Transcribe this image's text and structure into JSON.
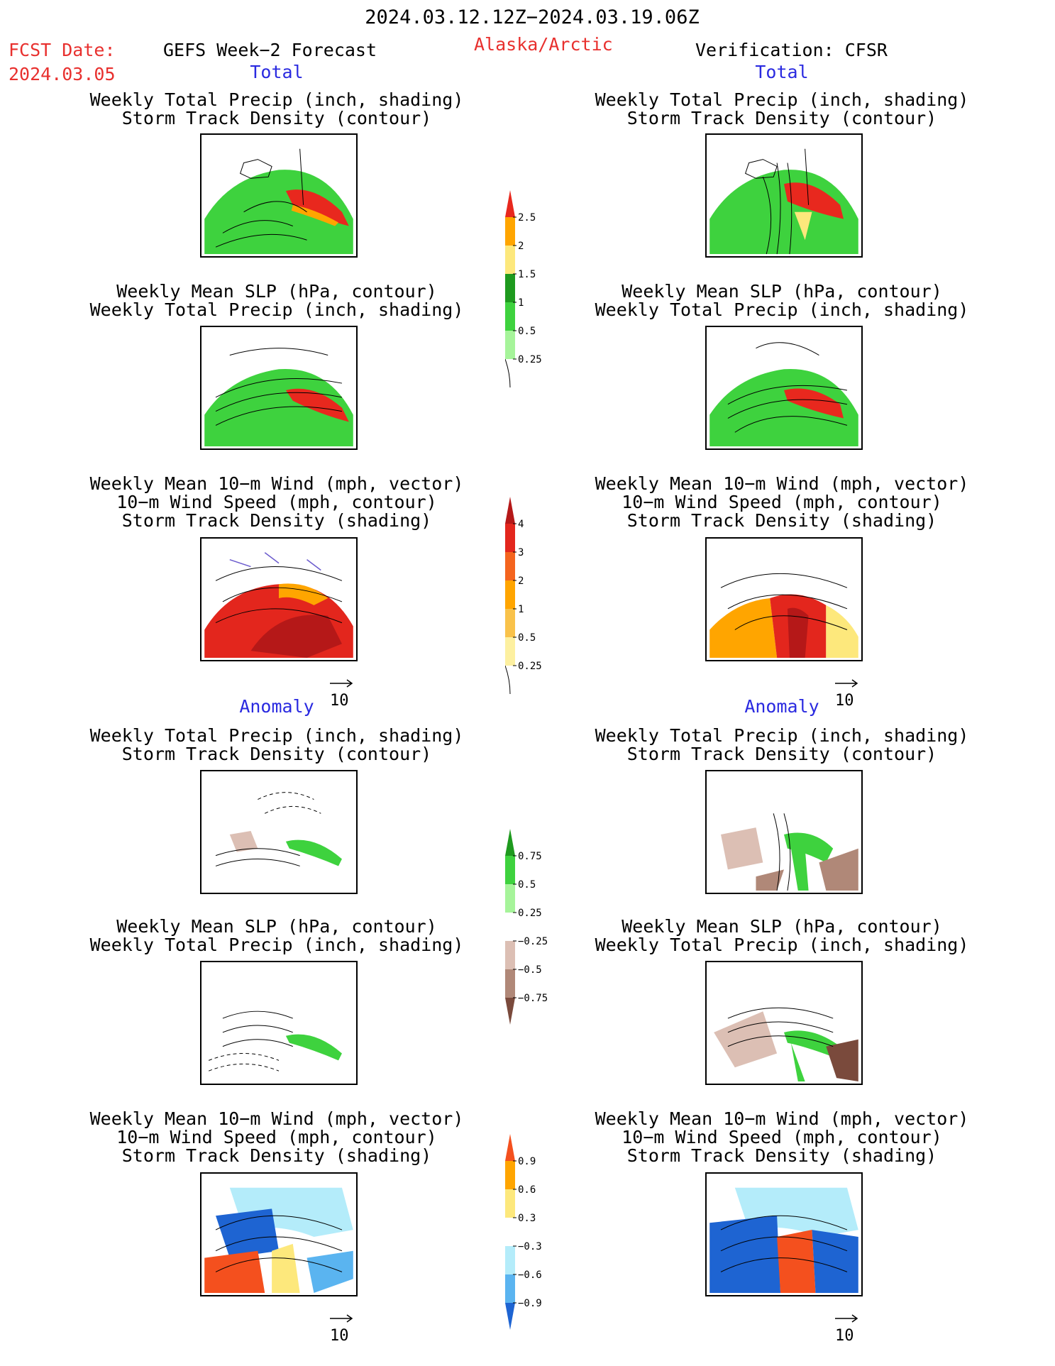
{
  "header": {
    "period": "2024.03.12.12Z−2024.03.19.06Z",
    "fcst_label": "FCST Date:",
    "fcst_date": "2024.03.05",
    "forecast_title": "GEFS Week−2 Forecast",
    "region": "Alaska/Arctic",
    "verification": "Verification: CFSR"
  },
  "sections": {
    "total": "Total",
    "anomaly": "Anomaly"
  },
  "titles": {
    "precip_storm": [
      "Weekly Total Precip (inch, shading)",
      "Storm Track Density (contour)"
    ],
    "slp_precip": [
      "Weekly Mean SLP (hPa, contour)",
      "Weekly Total Precip (inch, shading)"
    ],
    "wind_storm": [
      "Weekly Mean 10−m Wind (mph, vector)",
      "10−m Wind Speed (mph, contour)",
      "Storm Track Density (shading)"
    ]
  },
  "vector_ref": "10",
  "colorbars": {
    "precip_total": {
      "labels": [
        "2.5",
        "2",
        "1.5",
        "1",
        "0.5",
        "0.25"
      ],
      "colors": [
        "#e8281e",
        "#ffa500",
        "#fde87c",
        "#1e9a1e",
        "#3ed23e",
        "#a6f49a"
      ]
    },
    "storm_total": {
      "labels": [
        "4",
        "3",
        "2",
        "1",
        "0.5",
        "0.25"
      ],
      "colors": [
        "#b51818",
        "#e3261d",
        "#f4641e",
        "#ffa500",
        "#f9c24a",
        "#fdf0a0"
      ]
    },
    "precip_anom": {
      "labels": [
        "0.75",
        "0.5",
        "0.25",
        "−0.25",
        "−0.5",
        "−0.75"
      ],
      "colors": [
        "#1e9a1e",
        "#3ed23e",
        "#a6f49a",
        "#ffffff",
        "#dcbfb4",
        "#b08878",
        "#7a4a3c"
      ]
    },
    "storm_anom": {
      "labels": [
        "0.9",
        "0.6",
        "0.3",
        "−0.3",
        "−0.6",
        "−0.9"
      ],
      "colors": [
        "#f4501e",
        "#ffa500",
        "#fde87c",
        "#ffffff",
        "#b4ecfa",
        "#5ab4f0",
        "#1e64d2"
      ]
    }
  }
}
